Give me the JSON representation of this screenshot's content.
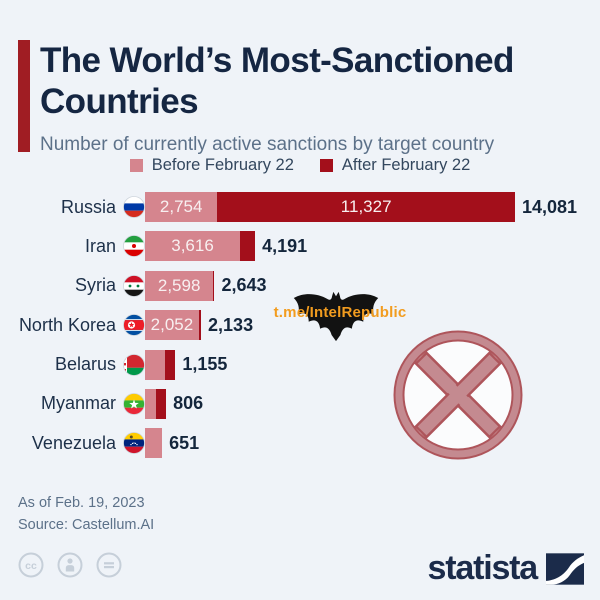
{
  "header": {
    "title_line1": "The World’s Most-Sanctioned",
    "title_line2": "Countries",
    "subtitle": "Number of currently active sanctions by target country"
  },
  "legend": [
    {
      "label": "Before February 22",
      "color": "#d5858e"
    },
    {
      "label": "After February 22",
      "color": "#a30f1b"
    }
  ],
  "chart_data": {
    "type": "bar",
    "orientation": "horizontal",
    "title": "The World’s Most-Sanctioned Countries",
    "subtitle": "Number of currently active sanctions by target country",
    "series_names": [
      "Before February 22",
      "After February 22"
    ],
    "xlim": [
      0,
      14081
    ],
    "grid": false,
    "legend_position": "top-center",
    "rows": [
      {
        "country": "Russia",
        "flag_icon": "russia-flag-icon",
        "before": 2754,
        "after": 11327,
        "total": 14081,
        "before_label": "2,754",
        "after_label": "11,327",
        "total_label": "14,081"
      },
      {
        "country": "Iran",
        "flag_icon": "iran-flag-icon",
        "before": 3616,
        "after": 575,
        "total": 4191,
        "before_label": "3,616",
        "after_label": "",
        "total_label": "4,191"
      },
      {
        "country": "Syria",
        "flag_icon": "syria-flag-icon",
        "before": 2598,
        "after": 45,
        "total": 2643,
        "before_label": "2,598",
        "after_label": "",
        "total_label": "2,643"
      },
      {
        "country": "North Korea",
        "flag_icon": "north-korea-flag-icon",
        "before": 2052,
        "after": 81,
        "total": 2133,
        "before_label": "2,052",
        "after_label": "",
        "total_label": "2,133"
      },
      {
        "country": "Belarus",
        "flag_icon": "belarus-flag-icon",
        "before": 770,
        "after": 385,
        "total": 1155,
        "before_label": "",
        "after_label": "",
        "total_label": "1,155"
      },
      {
        "country": "Myanmar",
        "flag_icon": "myanmar-flag-icon",
        "before": 406,
        "after": 400,
        "total": 806,
        "before_label": "",
        "after_label": "",
        "total_label": "806"
      },
      {
        "country": "Venezuela",
        "flag_icon": "venezuela-flag-icon",
        "before": 651,
        "after": 0,
        "total": 651,
        "before_label": "",
        "after_label": "",
        "total_label": "651"
      }
    ]
  },
  "watermarks": {
    "telegram_text": "t.me/IntelRepublic",
    "bat_icon": "bat-icon",
    "stamp_icon": "rejected-x-stamp-icon"
  },
  "footer": {
    "as_of": "As of Feb. 19, 2023",
    "source": "Source: Castellum.AI",
    "brand": "statista",
    "license_icons": [
      "cc-icon",
      "cc-by-person-icon",
      "cc-nd-equals-icon"
    ]
  },
  "colors": {
    "bg": "#eff3f8",
    "accent": "#a01d23",
    "navy": "#152642",
    "muted": "#5c7189",
    "pink": "#d5858e",
    "dred": "#a30f1b",
    "orange": "#f29c1f",
    "stamp": "#c07f85",
    "stamp_edge": "#a8454b"
  }
}
